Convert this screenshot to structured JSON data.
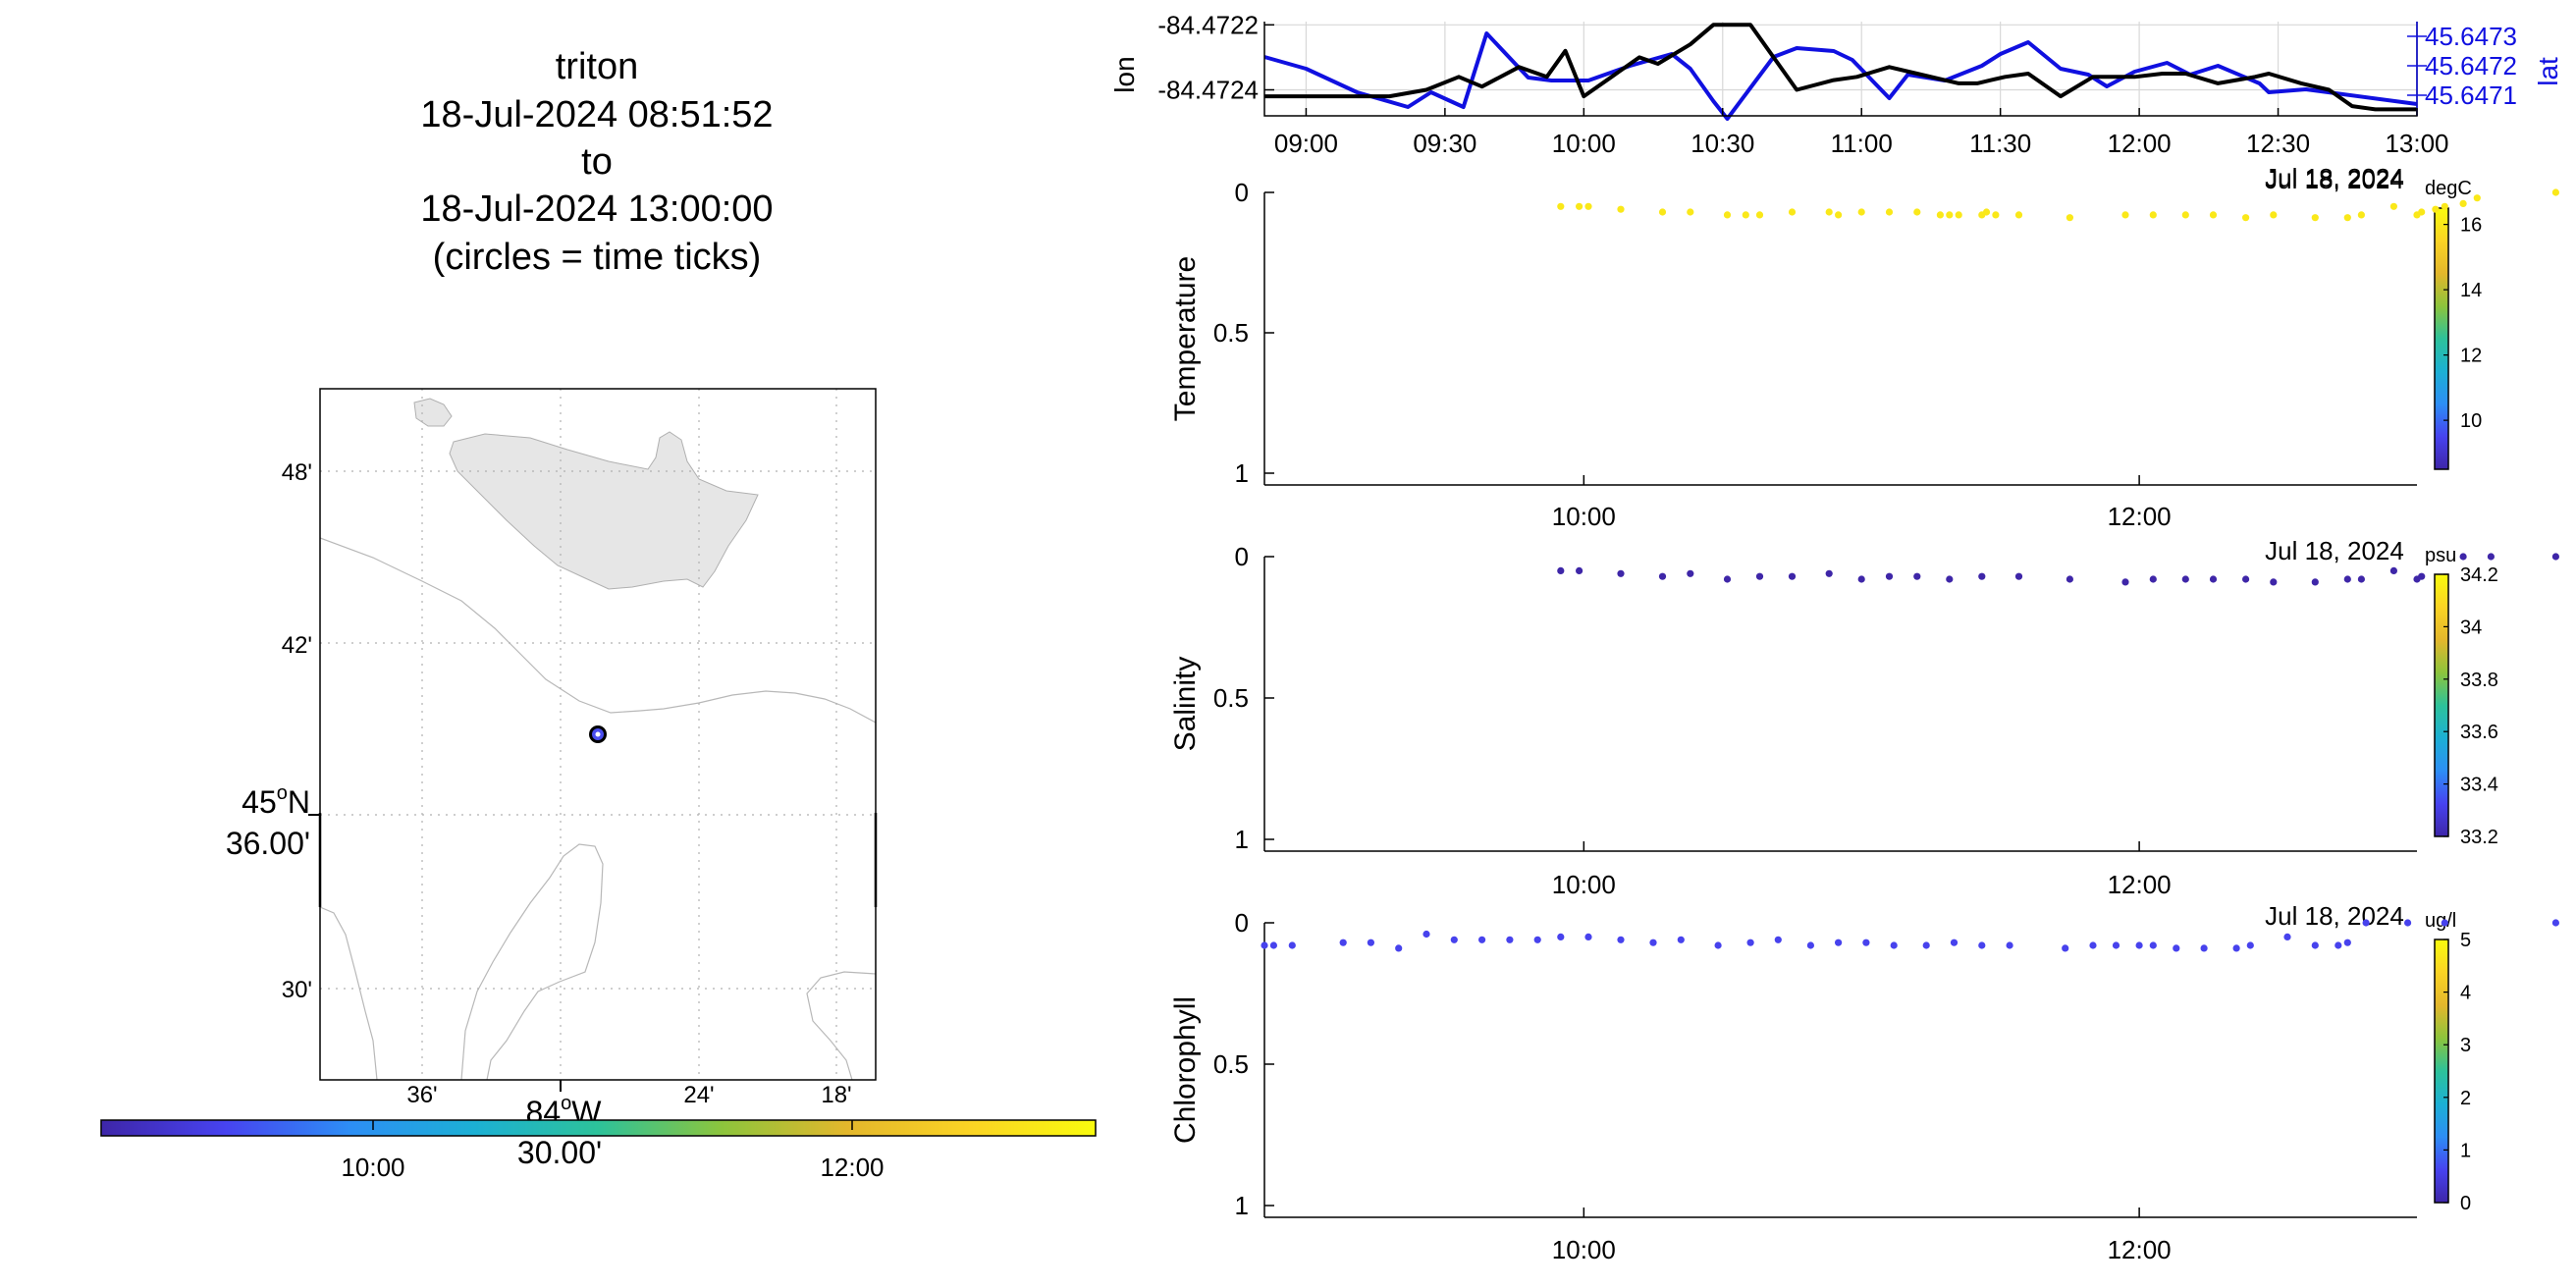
{
  "header": {
    "vehicle": "triton",
    "start": "18-Jul-2024 08:51:52",
    "to": "to",
    "end": "18-Jul-2024 13:00:00",
    "note": "(circles = time ticks)"
  },
  "colors": {
    "lon_line": "#000000",
    "lat_line": "#1010e0",
    "land": "#e6e6e6",
    "colormap": [
      "#3e26a8",
      "#4743f0",
      "#2d8ef5",
      "#1cb0d4",
      "#2dc29a",
      "#8dc43c",
      "#e3b72c",
      "#fbd424",
      "#f9fb0e"
    ]
  },
  "map": {
    "lat_ticks": [
      "48'",
      "42'",
      "30'"
    ],
    "lat_main": [
      "45",
      "o",
      "N",
      "36.00'"
    ],
    "lon_ticks": [
      "36'",
      "24'",
      "18'"
    ],
    "lon_main": [
      "84",
      "o",
      "W",
      "30.00'"
    ],
    "time_colorbar_ticks": [
      "10:00",
      "12:00"
    ]
  },
  "chart_data": [
    {
      "type": "line",
      "name": "position",
      "x_ticks": [
        "09:00",
        "09:30",
        "10:00",
        "10:30",
        "11:00",
        "11:30",
        "12:00",
        "12:30",
        "13:00"
      ],
      "date_label": "Jul 18, 2024",
      "ylabel_left": "lon",
      "ylabel_right": "lat",
      "yticks_left": [
        "-84.4722",
        "-84.4724"
      ],
      "yticks_right": [
        "45.6473",
        "45.6472",
        "45.6471"
      ],
      "ylim_left": [
        -84.47248,
        -84.47219
      ],
      "ylim_right": [
        45.64703,
        45.64735
      ],
      "series": [
        {
          "name": "lon",
          "axis": "left",
          "color": "#000000",
          "x": [
            "08:51",
            "09:06",
            "09:18",
            "09:26",
            "09:33",
            "09:38",
            "09:46",
            "09:52",
            "09:56",
            "10:00",
            "10:06",
            "10:12",
            "10:16",
            "10:23",
            "10:28",
            "10:36",
            "10:46",
            "10:54",
            "10:59",
            "11:06",
            "11:12",
            "11:21",
            "11:25",
            "11:28",
            "11:31",
            "11:36",
            "11:43",
            "11:50",
            "11:59",
            "12:05",
            "12:10",
            "12:17",
            "12:25",
            "12:28",
            "12:35",
            "12:41",
            "12:46",
            "12:51",
            "13:00"
          ],
          "y": [
            -84.47242,
            -84.47242,
            -84.47242,
            -84.4724,
            -84.47236,
            -84.47239,
            -84.47233,
            -84.47236,
            -84.47228,
            -84.47242,
            -84.47236,
            -84.4723,
            -84.47232,
            -84.47226,
            -84.4722,
            -84.4722,
            -84.4724,
            -84.47237,
            -84.47236,
            -84.47233,
            -84.47235,
            -84.47238,
            -84.47238,
            -84.47237,
            -84.47236,
            -84.47235,
            -84.47242,
            -84.47236,
            -84.47236,
            -84.47235,
            -84.47235,
            -84.47238,
            -84.47236,
            -84.47235,
            -84.47238,
            -84.4724,
            -84.47245,
            -84.47246,
            -84.47246
          ]
        },
        {
          "name": "lat",
          "axis": "right",
          "color": "#1010e0",
          "x": [
            "08:51",
            "09:00",
            "09:11",
            "09:22",
            "09:27",
            "09:34",
            "09:39",
            "09:48",
            "09:53",
            "10:01",
            "10:10",
            "10:19",
            "10:23",
            "10:28",
            "10:31",
            "10:41",
            "10:46",
            "10:54",
            "10:58",
            "11:06",
            "11:10",
            "11:18",
            "11:26",
            "11:30",
            "11:36",
            "11:43",
            "11:49",
            "11:53",
            "11:59",
            "12:06",
            "12:11",
            "12:17",
            "12:26",
            "12:28",
            "12:36",
            "13:00"
          ],
          "y": [
            45.64723,
            45.64719,
            45.64711,
            45.64706,
            45.64711,
            45.64706,
            45.64731,
            45.64716,
            45.64715,
            45.64715,
            45.6472,
            45.64724,
            45.64719,
            45.64708,
            45.64702,
            45.64723,
            45.64726,
            45.64725,
            45.64722,
            45.64709,
            45.64717,
            45.64715,
            45.6472,
            45.64724,
            45.64728,
            45.64719,
            45.64717,
            45.64713,
            45.64718,
            45.64721,
            45.64717,
            45.6472,
            45.64714,
            45.64711,
            45.64712,
            45.64707
          ]
        }
      ]
    },
    {
      "type": "scatter",
      "name": "temperature",
      "ylabel": "Temperature",
      "unit": "degC",
      "yticks": [
        "0",
        "0.5",
        "1"
      ],
      "ylim": [
        0,
        1
      ],
      "x_ticks": [
        "10:00",
        "12:00"
      ],
      "date_label": "Jul 18, 2024",
      "colorbar": {
        "ticks": [
          "16",
          "14",
          "12",
          "10"
        ],
        "range": [
          8.5,
          16.5
        ]
      },
      "x": [
        "09:55",
        "09:59",
        "10:01",
        "10:08",
        "10:17",
        "10:23",
        "10:31",
        "10:35",
        "10:38",
        "10:45",
        "10:53",
        "10:55",
        "11:00",
        "11:06",
        "11:12",
        "11:17",
        "11:19",
        "11:21",
        "11:26",
        "11:27",
        "11:29",
        "11:34",
        "11:45",
        "11:57",
        "12:03",
        "12:10",
        "12:16",
        "12:23",
        "12:29",
        "12:38",
        "12:45",
        "12:48",
        "12:55",
        "13:00",
        "13:01",
        "13:04",
        "13:06",
        "13:10",
        "13:13",
        "13:30"
      ],
      "y": [
        0.05,
        0.05,
        0.05,
        0.06,
        0.07,
        0.07,
        0.08,
        0.08,
        0.08,
        0.07,
        0.07,
        0.08,
        0.07,
        0.07,
        0.07,
        0.08,
        0.08,
        0.08,
        0.08,
        0.07,
        0.08,
        0.08,
        0.09,
        0.08,
        0.08,
        0.08,
        0.08,
        0.09,
        0.08,
        0.09,
        0.09,
        0.08,
        0.05,
        0.08,
        0.07,
        0.06,
        0.05,
        0.04,
        0.02,
        0.0
      ],
      "values": [
        16,
        16,
        16,
        16,
        16,
        16,
        16,
        16,
        16,
        16,
        16,
        16,
        16,
        16,
        16,
        16,
        16,
        16,
        16,
        16,
        16,
        16,
        16,
        16,
        16,
        16,
        16,
        16,
        16,
        16,
        16,
        16,
        16,
        16,
        16,
        16,
        16,
        16,
        16,
        16
      ]
    },
    {
      "type": "scatter",
      "name": "salinity",
      "ylabel": "Salinity",
      "unit": "psu",
      "yticks": [
        "0",
        "0.5",
        "1"
      ],
      "ylim": [
        0,
        1
      ],
      "x_ticks": [
        "10:00",
        "12:00"
      ],
      "date_label": "Jul 18, 2024",
      "colorbar": {
        "ticks": [
          "34.2",
          "34",
          "33.8",
          "33.6",
          "33.4",
          "33.2"
        ],
        "range": [
          33.2,
          34.2
        ]
      },
      "x": [
        "09:55",
        "09:59",
        "10:08",
        "10:17",
        "10:23",
        "10:31",
        "10:38",
        "10:45",
        "10:53",
        "11:00",
        "11:06",
        "11:12",
        "11:19",
        "11:26",
        "11:34",
        "11:45",
        "11:57",
        "12:03",
        "12:10",
        "12:16",
        "12:23",
        "12:29",
        "12:38",
        "12:45",
        "12:48",
        "12:55",
        "13:00",
        "13:01",
        "13:10",
        "13:16",
        "13:30"
      ],
      "y": [
        0.05,
        0.05,
        0.06,
        0.07,
        0.06,
        0.08,
        0.07,
        0.07,
        0.06,
        0.08,
        0.07,
        0.07,
        0.08,
        0.07,
        0.07,
        0.08,
        0.09,
        0.08,
        0.08,
        0.08,
        0.08,
        0.09,
        0.09,
        0.08,
        0.08,
        0.05,
        0.08,
        0.07,
        0.0,
        0.0,
        0.0
      ],
      "values": [
        33.2,
        33.2,
        33.2,
        33.2,
        33.2,
        33.2,
        33.2,
        33.2,
        33.2,
        33.2,
        33.2,
        33.2,
        33.2,
        33.2,
        33.2,
        33.2,
        33.2,
        33.2,
        33.2,
        33.2,
        33.2,
        33.2,
        33.2,
        33.2,
        33.2,
        33.2,
        33.2,
        33.2,
        33.2,
        33.2,
        33.2
      ]
    },
    {
      "type": "scatter",
      "name": "chlorophyll",
      "ylabel": "Chlorophyll",
      "unit": "ug/l",
      "yticks": [
        "0",
        "0.5",
        "1"
      ],
      "ylim": [
        0,
        1
      ],
      "x_ticks": [
        "10:00",
        "12:00"
      ],
      "date_label": "Jul 18, 2024",
      "colorbar": {
        "ticks": [
          "5",
          "4",
          "3",
          "2",
          "1",
          "0"
        ],
        "range": [
          0,
          5
        ]
      },
      "x": [
        "08:51",
        "08:53",
        "08:57",
        "09:08",
        "09:14",
        "09:20",
        "09:26",
        "09:32",
        "09:38",
        "09:44",
        "09:50",
        "09:55",
        "10:01",
        "10:08",
        "10:15",
        "10:21",
        "10:29",
        "10:36",
        "10:42",
        "10:49",
        "10:55",
        "11:01",
        "11:07",
        "11:14",
        "11:20",
        "11:26",
        "11:32",
        "11:44",
        "11:50",
        "11:55",
        "12:00",
        "12:03",
        "12:08",
        "12:14",
        "12:21",
        "12:24",
        "12:32",
        "12:38",
        "12:43",
        "12:45",
        "12:49",
        "12:58",
        "13:06",
        "13:30"
      ],
      "y": [
        0.08,
        0.08,
        0.08,
        0.07,
        0.07,
        0.09,
        0.04,
        0.06,
        0.06,
        0.06,
        0.06,
        0.05,
        0.05,
        0.06,
        0.07,
        0.06,
        0.08,
        0.07,
        0.06,
        0.08,
        0.07,
        0.07,
        0.08,
        0.08,
        0.07,
        0.08,
        0.08,
        0.09,
        0.08,
        0.08,
        0.08,
        0.08,
        0.09,
        0.09,
        0.09,
        0.08,
        0.05,
        0.08,
        0.08,
        0.07,
        0.0,
        0.0,
        0.0,
        0.0
      ],
      "values": [
        0.6,
        0.6,
        0.6,
        0.6,
        0.6,
        0.6,
        0.6,
        0.6,
        0.6,
        0.6,
        0.6,
        0.6,
        0.6,
        0.6,
        0.6,
        0.6,
        0.6,
        0.6,
        0.6,
        0.6,
        0.6,
        0.6,
        0.6,
        0.6,
        0.6,
        0.6,
        0.6,
        0.6,
        0.6,
        0.6,
        0.6,
        0.6,
        0.6,
        0.6,
        0.6,
        0.6,
        0.6,
        0.6,
        0.6,
        0.6,
        0.6,
        0.6,
        0.6,
        0.6
      ]
    }
  ]
}
